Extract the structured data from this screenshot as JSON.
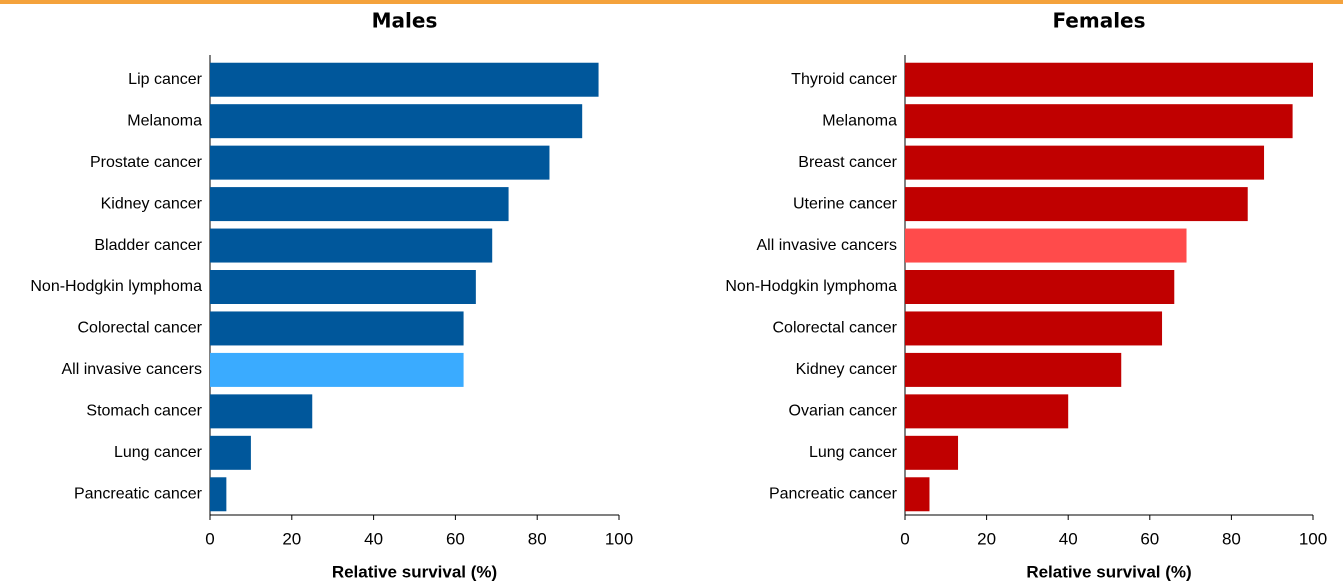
{
  "chart_data": [
    {
      "type": "bar",
      "orientation": "horizontal",
      "title": "Males",
      "x_label": "Relative survival (%)",
      "categories": [
        "Lip cancer",
        "Melanoma",
        "Prostate cancer",
        "Kidney cancer",
        "Bladder cancer",
        "Non-Hodgkin lymphoma",
        "Colorectal cancer",
        "All invasive cancers",
        "Stomach cancer",
        "Lung cancer",
        "Pancreatic cancer"
      ],
      "values": [
        95,
        91,
        83,
        73,
        69,
        65,
        62,
        62,
        25,
        10,
        4
      ],
      "colors": [
        "#00579b",
        "#00579b",
        "#00579b",
        "#00579b",
        "#00579b",
        "#00579b",
        "#00579b",
        "#3aabff",
        "#00579b",
        "#00579b",
        "#00579b"
      ],
      "xlim": [
        0,
        100
      ],
      "xticks": [
        0,
        20,
        40,
        60,
        80,
        100
      ]
    },
    {
      "type": "bar",
      "orientation": "horizontal",
      "title": "Females",
      "x_label": "Relative survival (%)",
      "categories": [
        "Thyroid cancer",
        "Melanoma",
        "Breast cancer",
        "Uterine cancer",
        "All invasive cancers",
        "Non-Hodgkin lymphoma",
        "Colorectal cancer",
        "Kidney cancer",
        "Ovarian cancer",
        "Lung cancer",
        "Pancreatic cancer"
      ],
      "values": [
        100,
        95,
        88,
        84,
        69,
        66,
        63,
        53,
        40,
        13,
        6
      ],
      "colors": [
        "#c00000",
        "#c00000",
        "#c00000",
        "#c00000",
        "#ff4b4b",
        "#c00000",
        "#c00000",
        "#c00000",
        "#c00000",
        "#c00000",
        "#c00000"
      ],
      "xlim": [
        0,
        100
      ],
      "xticks": [
        0,
        20,
        40,
        60,
        80,
        100
      ]
    }
  ]
}
